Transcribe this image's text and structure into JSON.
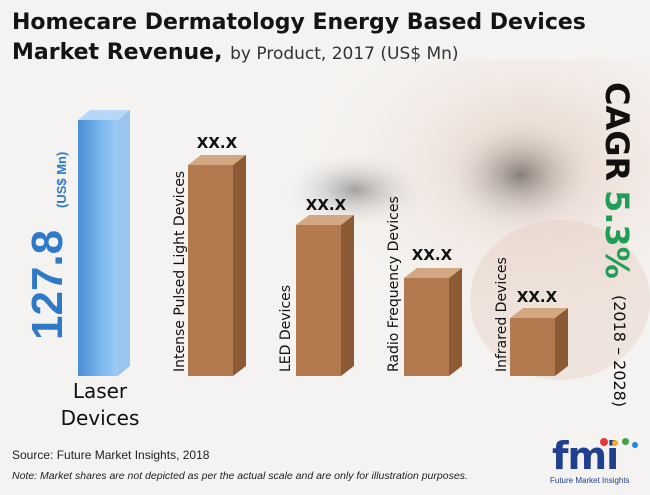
{
  "title": {
    "main": "Homecare Dermatology Energy Based Devices Market Revenue,",
    "sub": "by Product, 2017 (US$ Mn)"
  },
  "chart_data": {
    "type": "bar",
    "title": "Homecare Dermatology Energy Based Devices Market Revenue, by Product, 2017 (US$ Mn)",
    "unit": "(US$ Mn)",
    "categories": [
      "Laser Devices",
      "Intense Pulsed Light Devices",
      "LED Devices",
      "Radio Frequency Devices",
      "Infrared Devices"
    ],
    "values": [
      127.8,
      null,
      null,
      null,
      null
    ],
    "relative_heights_note": "Market shares are not depicted as per the actual scale",
    "data_labels": [
      "127.8",
      "XX.X",
      "XX.X",
      "XX.X",
      "XX.X"
    ],
    "colors": {
      "laser": "#6aaeea",
      "others": "#b37a50",
      "cagr_value": "#1e9e57"
    }
  },
  "cagr": {
    "label": "CAGR",
    "value": "5.3%",
    "period": "(2018 – 2028)"
  },
  "source": "Source: Future Market Insights, 2018",
  "note": "Note: Market shares are not depicted as per the actual scale and are only for illustration purposes.",
  "logo": {
    "name": "fmi",
    "subtitle": "Future Market Insights"
  }
}
